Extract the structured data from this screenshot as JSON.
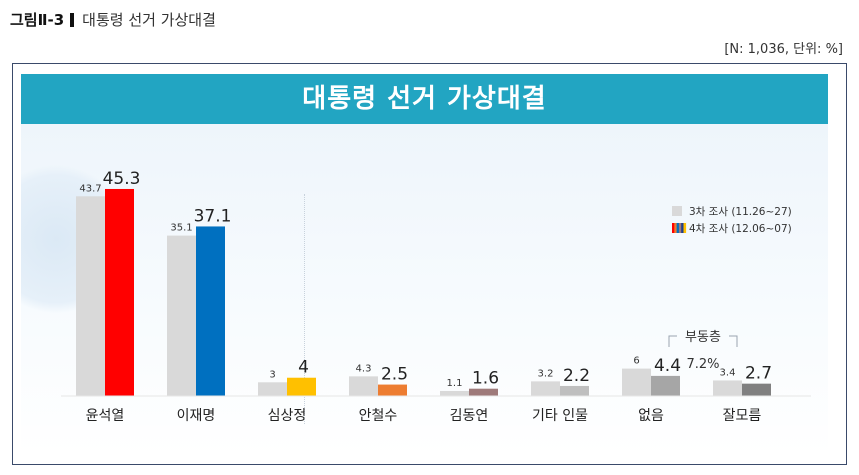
{
  "figure": {
    "number": "그림Ⅱ-3",
    "name": "대통령 선거 가상대결"
  },
  "meta": "[N: 1,036, 단위: %]",
  "banner_title": "대통령 선거 가상대결",
  "colors": {
    "third_survey": "#d9d9d9",
    "banner": "#22a5c2",
    "윤석열": "#ff0000",
    "이재명": "#0070c0",
    "심상정": "#ffc000",
    "안철수": "#ed7d31",
    "김동연": "#9e7a7a",
    "기타 인물": "#bfbfbf",
    "없음": "#a6a6a6",
    "잘모름": "#808080"
  },
  "undecided": {
    "label": "부동층",
    "value": "7.2%"
  },
  "chart_data": {
    "type": "bar",
    "title": "대통령 선거 가상대결",
    "xlabel": "",
    "ylabel": "",
    "ylim": [
      0,
      50
    ],
    "grid": false,
    "legend_position": "top-right",
    "categories": [
      "윤석열",
      "이재명",
      "심상정",
      "안철수",
      "김동연",
      "기타 인물",
      "없음",
      "잘모름"
    ],
    "series": [
      {
        "name": "3차 조사 (11.26~27)",
        "values": [
          43.7,
          35.1,
          3.0,
          4.3,
          1.1,
          3.2,
          6.0,
          3.4
        ]
      },
      {
        "name": "4차 조사 (12.06~07)",
        "values": [
          45.3,
          37.1,
          4.0,
          2.5,
          1.6,
          2.2,
          4.4,
          2.7
        ]
      }
    ]
  }
}
